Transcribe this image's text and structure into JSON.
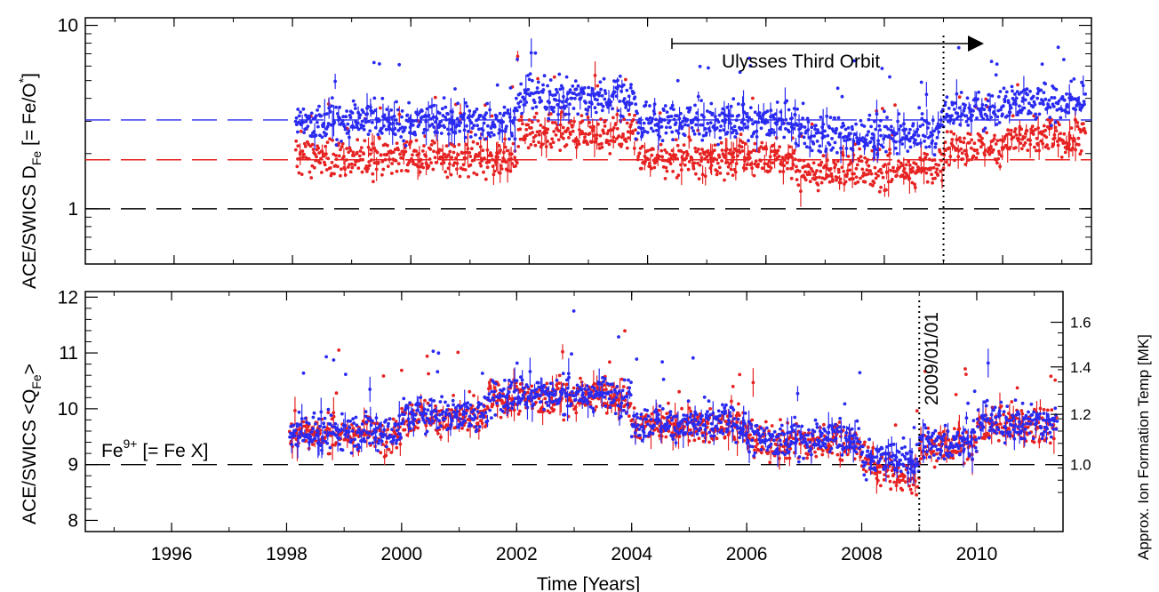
{
  "chart_data": [
    {
      "id": "top",
      "type": "scatter",
      "ylabel_main": "ACE/SWICS D",
      "ylabel_sub": "Fe",
      "ylabel_tail": " [= Fe/O",
      "ylabel_sup": "*",
      "ylabel_end": "]",
      "yscale": "log",
      "xlim": [
        1994.5,
        2011.5
      ],
      "ylim": [
        0.5,
        11
      ],
      "yticks_major": [
        1,
        10
      ],
      "ytick_labels": [
        "1",
        "10"
      ],
      "hlines": [
        {
          "y": 3.05,
          "color": "#2a2af0"
        },
        {
          "y": 1.85,
          "color": "#e62222"
        },
        {
          "y": 1.0,
          "color": "#000000"
        }
      ],
      "series": [
        {
          "color": "#2a2af0",
          "x_start": 1998.0,
          "x_end": 2011.4,
          "mean": 3.05
        },
        {
          "color": "#e62222",
          "x_start": 1998.0,
          "x_end": 2011.4,
          "mean": 1.85
        }
      ],
      "annotation_text": "Ulysses Third Orbit",
      "annotation_range": [
        2004.4,
        2009.6
      ]
    },
    {
      "id": "bottom",
      "type": "scatter",
      "ylabel_main": "ACE/SWICS <Q",
      "ylabel_sub": "Fe",
      "ylabel_end": ">",
      "xlabel": "Time [Years]",
      "xlim": [
        1994.5,
        2011.5
      ],
      "ylim": [
        7.8,
        12.1
      ],
      "yticks": [
        8,
        9,
        10,
        11,
        12
      ],
      "ytick_labels": [
        "8",
        "9",
        "10",
        "11",
        "12"
      ],
      "xticks": [
        1996,
        1998,
        2000,
        2002,
        2004,
        2006,
        2008,
        2010
      ],
      "xtick_labels": [
        "1996",
        "1998",
        "2000",
        "2002",
        "2004",
        "2006",
        "2008",
        "2010"
      ],
      "hline": 9.0,
      "right_axis_label": "Approx. Ion Formation Temp [MK]",
      "right_ticks": [
        {
          "value": 1.0,
          "label": "1.0",
          "y_equiv": 9.0
        },
        {
          "value": 1.2,
          "label": "1.2",
          "y_equiv": 9.9
        },
        {
          "value": 1.4,
          "label": "1.4",
          "y_equiv": 10.75
        },
        {
          "value": 1.6,
          "label": "1.6",
          "y_equiv": 11.55
        }
      ],
      "fe_label_main": "Fe",
      "fe_label_sup": "9+",
      "fe_label_tail": " [= Fe X]",
      "series": [
        {
          "color": "#2a2af0",
          "x_start": 1998.0,
          "x_end": 2011.4
        },
        {
          "color": "#e62222",
          "x_start": 1998.0,
          "x_end": 2011.4
        }
      ],
      "vline_x": 2009.0,
      "vline_label": "2009/01/01"
    }
  ]
}
